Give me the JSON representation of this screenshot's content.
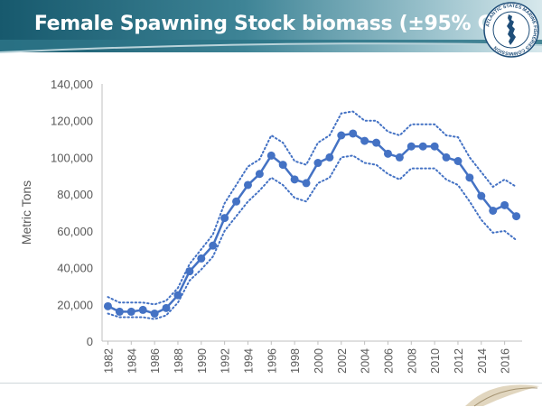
{
  "header": {
    "title": "Female Spawning Stock biomass (±95% CI)"
  },
  "logo": {
    "icon": "asmfc-seal-icon",
    "text": "ATLANTIC STATES MARINE FISHERIES COMMISSION"
  },
  "colors": {
    "banner": "#17596d",
    "series": "#4472c4",
    "ci": "#4472c4",
    "axis": "#595959"
  },
  "chart_data": {
    "type": "line",
    "title": "",
    "xlabel": "",
    "ylabel": "Metric Tons",
    "ylim": [
      0,
      140000
    ],
    "yticks": [
      0,
      20000,
      40000,
      60000,
      80000,
      100000,
      120000,
      140000
    ],
    "ytick_labels": [
      "0",
      "20,000",
      "40,000",
      "60,000",
      "80,000",
      "100,000",
      "120,000",
      "140,000"
    ],
    "x": [
      1982,
      1983,
      1984,
      1985,
      1986,
      1987,
      1988,
      1989,
      1990,
      1991,
      1992,
      1993,
      1994,
      1995,
      1996,
      1997,
      1998,
      1999,
      2000,
      2001,
      2002,
      2003,
      2004,
      2005,
      2006,
      2007,
      2008,
      2009,
      2010,
      2011,
      2012,
      2013,
      2014,
      2015,
      2016,
      2017
    ],
    "xtick_labels": [
      "1982",
      "1984",
      "1986",
      "1988",
      "1990",
      "1992",
      "1994",
      "1996",
      "1998",
      "2000",
      "2002",
      "2004",
      "2006",
      "2008",
      "2010",
      "2012",
      "2014",
      "2016"
    ],
    "grid": false,
    "series": [
      {
        "role": "estimate",
        "style": "solid-markers",
        "values": [
          19000,
          16000,
          16000,
          17000,
          15000,
          18000,
          25000,
          38000,
          45000,
          52000,
          67000,
          76000,
          85000,
          91000,
          101000,
          96000,
          88000,
          86000,
          97000,
          100000,
          112000,
          113000,
          109000,
          108000,
          102000,
          100000,
          106000,
          106000,
          106000,
          100000,
          98000,
          89000,
          79000,
          71000,
          74000,
          68000
        ]
      },
      {
        "role": "upper-95-ci",
        "style": "dotted",
        "values": [
          24000,
          21000,
          21000,
          21000,
          20000,
          22000,
          29000,
          42000,
          50000,
          58000,
          75000,
          85000,
          95000,
          99000,
          112000,
          108000,
          98000,
          96000,
          108000,
          112000,
          124000,
          125000,
          120000,
          120000,
          114000,
          112000,
          118000,
          118000,
          118000,
          112000,
          111000,
          100000,
          92000,
          84000,
          88000,
          84000
        ]
      },
      {
        "role": "lower-95-ci",
        "style": "dotted",
        "values": [
          15000,
          13000,
          13000,
          13000,
          12000,
          14000,
          21000,
          33000,
          39000,
          46000,
          60000,
          68000,
          76000,
          82000,
          89000,
          85000,
          78000,
          76000,
          86000,
          89000,
          100000,
          101000,
          97000,
          96000,
          91000,
          88000,
          94000,
          94000,
          94000,
          88000,
          85000,
          76000,
          66000,
          59000,
          60000,
          55000
        ]
      }
    ]
  }
}
